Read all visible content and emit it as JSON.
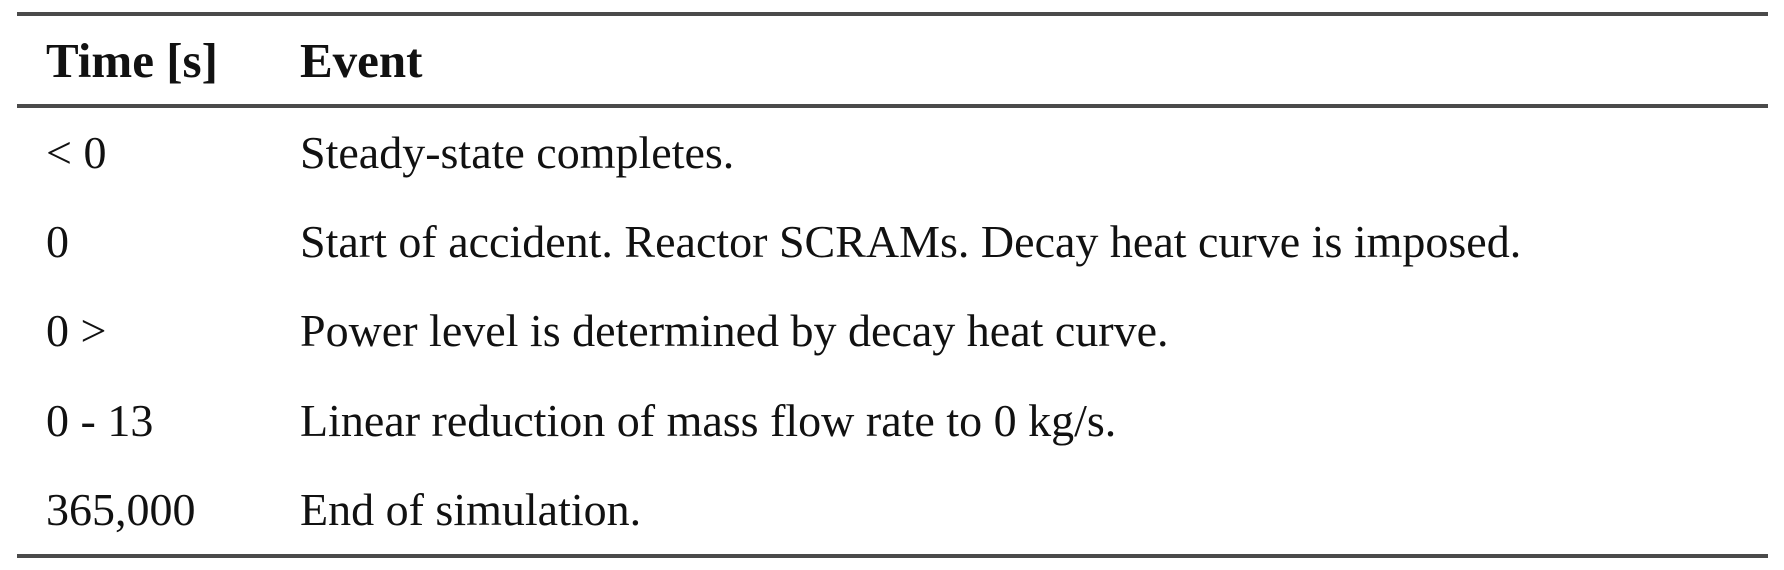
{
  "table": {
    "headers": {
      "time": "Time [s]",
      "event": "Event"
    },
    "rows": [
      {
        "time": "< 0",
        "event": "Steady-state completes."
      },
      {
        "time": "0",
        "event": "Start of accident. Reactor SCRAMs. Decay heat curve is imposed."
      },
      {
        "time": "0 >",
        "event": "Power level is determined by decay heat curve."
      },
      {
        "time": "0 - 13",
        "event": "Linear reduction of mass flow rate to 0 kg/s."
      },
      {
        "time": "365,000",
        "event": "End of simulation."
      }
    ]
  }
}
